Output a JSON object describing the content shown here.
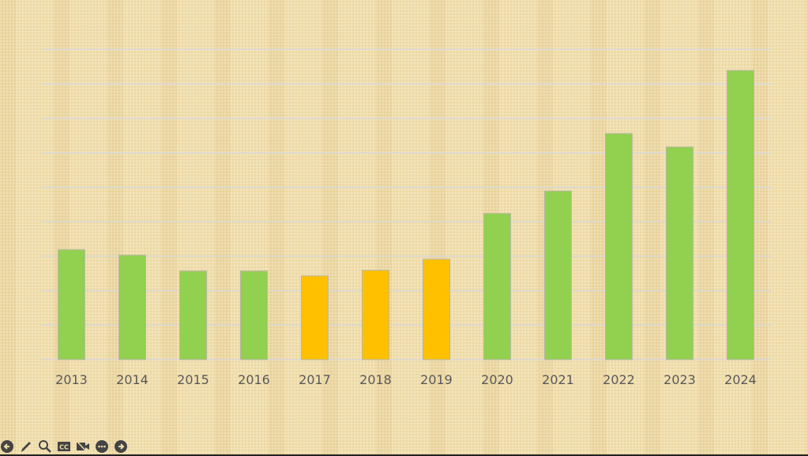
{
  "chart_data": {
    "type": "bar",
    "categories": [
      "2013",
      "2014",
      "2015",
      "2016",
      "2017",
      "2018",
      "2019",
      "2020",
      "2021",
      "2022",
      "2023",
      "2024"
    ],
    "values": [
      3.19,
      3.03,
      2.57,
      2.57,
      2.43,
      2.59,
      2.91,
      4.24,
      4.89,
      6.56,
      6.17,
      8.39
    ],
    "bar_colors": [
      "#92d050",
      "#92d050",
      "#92d050",
      "#92d050",
      "#ffc000",
      "#ffc000",
      "#ffc000",
      "#92d050",
      "#92d050",
      "#92d050",
      "#92d050",
      "#92d050"
    ],
    "title": "",
    "xlabel": "",
    "ylabel": "",
    "ylim": [
      0,
      9
    ],
    "grid": true,
    "y_tick_labels_shown": false,
    "tick_label_color": "#595959",
    "grid_color": "#d9d9d9"
  },
  "toolbar": {
    "icons": [
      "back-arrow-icon",
      "pen-icon",
      "zoom-icon",
      "closed-captions-icon",
      "camera-off-icon",
      "more-icon",
      "forward-arrow-icon"
    ],
    "cc_label": "CC"
  }
}
